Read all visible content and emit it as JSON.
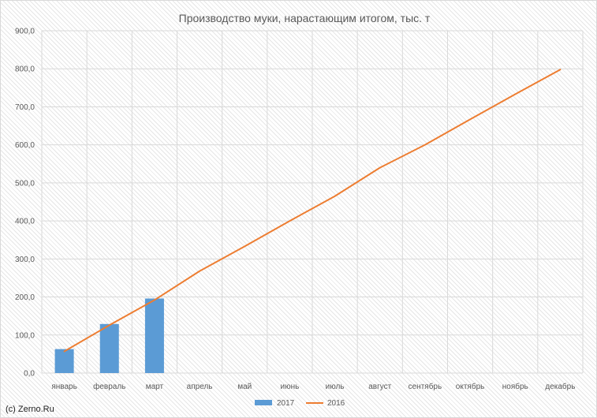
{
  "chart_data": {
    "type": "bar+line",
    "title": "Производство муки, нарастающим итогом, тыс. т",
    "categories": [
      "январь",
      "февраль",
      "март",
      "апрель",
      "май",
      "июнь",
      "июль",
      "август",
      "сентябрь",
      "октябрь",
      "ноябрь",
      "декабрь"
    ],
    "ylim": [
      0,
      900
    ],
    "yticks": [
      "0,0",
      "100,0",
      "200,0",
      "300,0",
      "400,0",
      "500,0",
      "600,0",
      "700,0",
      "800,0",
      "900,0"
    ],
    "grid": true,
    "legend_placement": "bottom-center",
    "series": [
      {
        "name": "2017",
        "kind": "bar",
        "color": "#5b9bd5",
        "values": [
          63,
          129,
          196,
          null,
          null,
          null,
          null,
          null,
          null,
          null,
          null,
          null
        ]
      },
      {
        "name": "2016",
        "kind": "line",
        "color": "#ed7d31",
        "values": [
          57,
          126,
          192,
          268,
          333,
          400,
          465,
          540,
          600,
          667,
          733,
          798
        ]
      }
    ]
  },
  "watermark": "(c) Zerno.Ru"
}
